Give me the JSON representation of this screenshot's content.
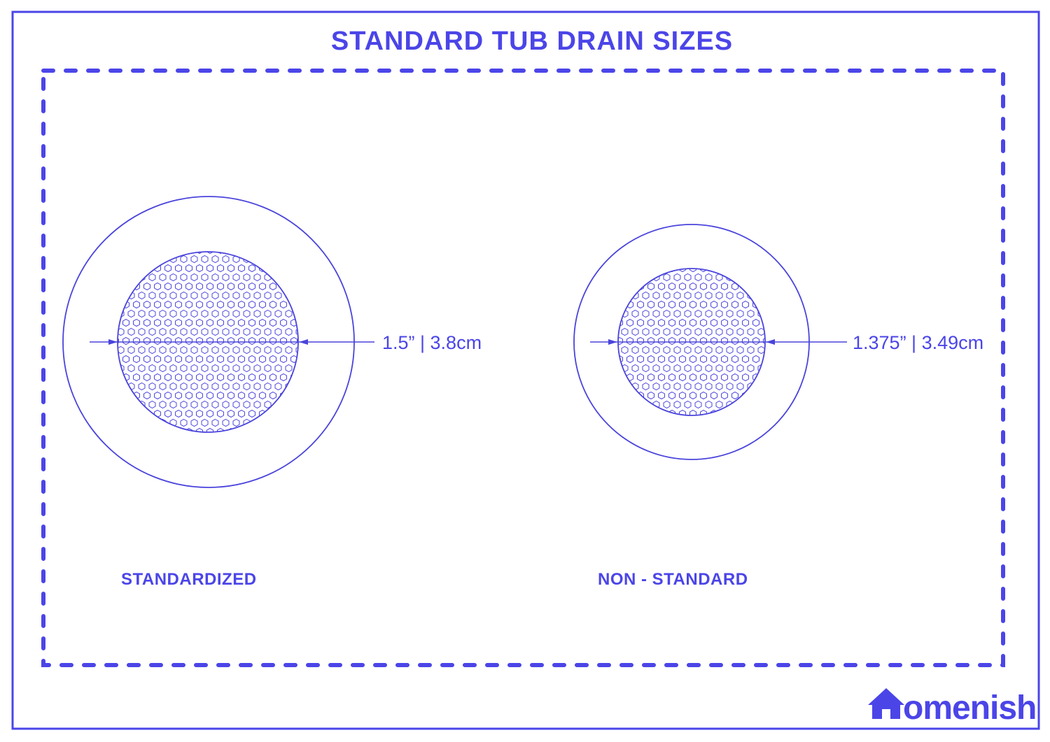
{
  "title": "STANDARD TUB DRAIN SIZES",
  "drains": [
    {
      "caption": "STANDARDIZED",
      "dimension": "1.5” | 3.8cm"
    },
    {
      "caption": "NON - STANDARD",
      "dimension": "1.375” | 3.49cm"
    }
  ],
  "brand": {
    "text": "omenish",
    "icon": "house-icon"
  },
  "colors": {
    "accent": "#4b45e8",
    "line": "#4a44dc"
  }
}
